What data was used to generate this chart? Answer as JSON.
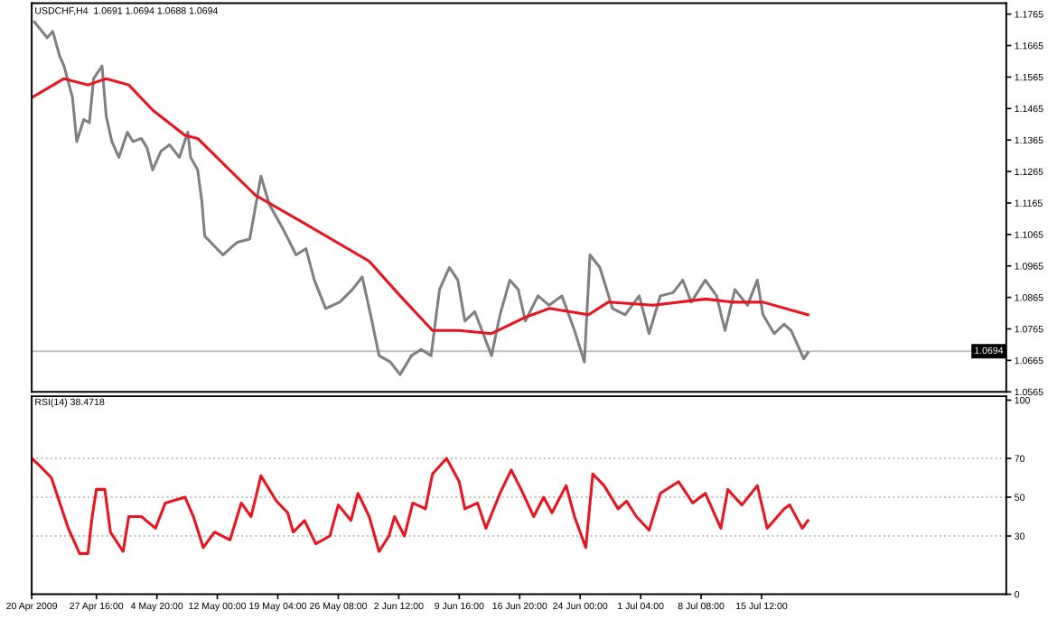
{
  "chart_data": [
    {
      "type": "line",
      "title": "USDCHF,H4  1.0691 1.0694 1.0688 1.0694",
      "xlim": [
        "2009-04-20T00:00",
        "2009-08-13T12:00"
      ],
      "ylim": [
        1.0565,
        1.18
      ],
      "yticks": [
        1.0565,
        1.0665,
        1.0765,
        1.0865,
        1.0965,
        1.1065,
        1.1165,
        1.1265,
        1.1365,
        1.1465,
        1.1565,
        1.1665,
        1.1765
      ],
      "tick_labels": "y",
      "grid": false,
      "ref_lines": [
        {
          "axis": "y",
          "value": 1.0694,
          "label": "1.0694",
          "color": "#c0c0c0",
          "line_style": "solid"
        }
      ],
      "series": [
        {
          "color": "#808080",
          "x": [
            "2009-04-20T08:00",
            "2009-04-21T20:00",
            "2009-04-22T12:00",
            "2009-04-23T08:00",
            "2009-04-23T20:00",
            "2009-04-24T20:00",
            "2009-04-25T08:00",
            "2009-04-26T04:00",
            "2009-04-26T20:00",
            "2009-04-27T08:00",
            "2009-04-28T08:00",
            "2009-04-28T20:00",
            "2009-04-29T12:00",
            "2009-04-30T08:00",
            "2009-05-01T08:00",
            "2009-05-02T00:00",
            "2009-05-03T00:00",
            "2009-05-03T16:00",
            "2009-05-04T08:00",
            "2009-05-05T08:00",
            "2009-05-06T08:00",
            "2009-05-07T12:00",
            "2009-05-08T12:00",
            "2009-05-08T20:00",
            "2009-05-09T16:00",
            "2009-05-10T04:00",
            "2009-05-10T12:00",
            "2009-05-12T16:00",
            "2009-05-14T08:00",
            "2009-05-15T20:00",
            "2009-05-17T04:00",
            "2009-05-18T04:00",
            "2009-05-19T20:00",
            "2009-05-21T08:00",
            "2009-05-22T12:00",
            "2009-05-23T12:00",
            "2009-05-24T20:00",
            "2009-05-26T12:00",
            "2009-05-28T00:00",
            "2009-05-29T04:00",
            "2009-05-30T04:00",
            "2009-05-31T04:00",
            "2009-06-01T12:00",
            "2009-06-02T16:00",
            "2009-06-04T00:00",
            "2009-06-05T04:00",
            "2009-06-06T08:00",
            "2009-06-07T08:00",
            "2009-06-08T12:00",
            "2009-06-09T12:00",
            "2009-06-10T08:00",
            "2009-06-11T12:00",
            "2009-06-12T12:00",
            "2009-06-13T12:00",
            "2009-06-14T12:00",
            "2009-06-15T16:00",
            "2009-06-16T16:00",
            "2009-06-17T12:00",
            "2009-06-19T00:00",
            "2009-06-20T08:00",
            "2009-06-21T20:00",
            "2009-06-23T08:00",
            "2009-06-24T12:00",
            "2009-06-25T04:00",
            "2009-06-26T08:00",
            "2009-06-27T20:00",
            "2009-06-29T08:00",
            "2009-07-01T00:00",
            "2009-07-02T04:00",
            "2009-07-03T12:00",
            "2009-07-05T00:00",
            "2009-07-06T04:00",
            "2009-07-07T04:00",
            "2009-07-08T20:00",
            "2009-07-10T04:00",
            "2009-07-11T04:00",
            "2009-07-12T08:00",
            "2009-07-13T20:00",
            "2009-07-15T00:00",
            "2009-07-15T16:00",
            "2009-07-17T00:00",
            "2009-07-18T04:00",
            "2009-07-19T00:00",
            "2009-07-19T20:00",
            "2009-07-20T12:00",
            "2009-07-21T00:00"
          ],
          "values": [
            1.174,
            1.169,
            1.171,
            1.163,
            1.16,
            1.15,
            1.136,
            1.143,
            1.142,
            1.156,
            1.16,
            1.144,
            1.136,
            1.131,
            1.139,
            1.136,
            1.137,
            1.134,
            1.127,
            1.133,
            1.135,
            1.131,
            1.139,
            1.131,
            1.127,
            1.117,
            1.106,
            1.1,
            1.104,
            1.105,
            1.125,
            1.116,
            1.108,
            1.1,
            1.102,
            1.092,
            1.083,
            1.085,
            1.089,
            1.093,
            1.081,
            1.068,
            1.066,
            1.062,
            1.068,
            1.07,
            1.068,
            1.089,
            1.096,
            1.092,
            1.079,
            1.082,
            1.075,
            1.068,
            1.081,
            1.092,
            1.089,
            1.079,
            1.087,
            1.084,
            1.087,
            1.076,
            1.066,
            1.1,
            1.096,
            1.083,
            1.081,
            1.087,
            1.075,
            1.087,
            1.088,
            1.092,
            1.085,
            1.092,
            1.087,
            1.076,
            1.089,
            1.084,
            1.092,
            1.081,
            1.075,
            1.078,
            1.076,
            1.071,
            1.067,
            1.069
          ]
        },
        {
          "color": "#e8141e",
          "x": [
            "2009-04-20T00:00",
            "2009-04-23T20:00",
            "2009-04-26T16:00",
            "2009-04-28T20:00",
            "2009-05-01T12:00",
            "2009-05-04T08:00",
            "2009-05-08T04:00",
            "2009-05-09T16:00",
            "2009-05-16T12:00",
            "2009-05-22T08:00",
            "2009-05-30T00:00",
            "2009-06-02T16:00",
            "2009-06-06T12:00",
            "2009-06-09T16:00",
            "2009-06-13T12:00",
            "2009-06-17T08:00",
            "2009-06-20T08:00",
            "2009-06-25T00:00",
            "2009-06-27T08:00",
            "2009-07-02T16:00",
            "2009-07-08T20:00",
            "2009-07-12T00:00",
            "2009-07-15T16:00",
            "2009-07-21T00:00"
          ],
          "values": [
            1.15,
            1.156,
            1.154,
            1.156,
            1.154,
            1.146,
            1.138,
            1.137,
            1.119,
            1.11,
            1.098,
            1.087,
            1.076,
            1.076,
            1.075,
            1.08,
            1.083,
            1.081,
            1.085,
            1.084,
            1.086,
            1.085,
            1.085,
            1.081
          ]
        }
      ]
    },
    {
      "type": "line",
      "title": "RSI(14) 38.4718",
      "xlim": [
        "2009-04-20T00:00",
        "2009-08-13T12:00"
      ],
      "ylim": [
        0,
        102
      ],
      "yticks": [
        0,
        30,
        50,
        70,
        100
      ],
      "grid": false,
      "xticks": [
        {
          "value": "2009-04-20T00:00",
          "label": "20 Apr 2009"
        },
        {
          "value": "2009-04-27T16:00",
          "label": "27 Apr 16:00"
        },
        {
          "value": "2009-05-04T20:00",
          "label": "4 May 20:00"
        },
        {
          "value": "2009-05-12T00:00",
          "label": "12 May 00:00"
        },
        {
          "value": "2009-05-19T04:00",
          "label": "19 May 04:00"
        },
        {
          "value": "2009-05-26T08:00",
          "label": "26 May 08:00"
        },
        {
          "value": "2009-06-02T12:00",
          "label": "2 Jun 12:00"
        },
        {
          "value": "2009-06-09T16:00",
          "label": "9 Jun 16:00"
        },
        {
          "value": "2009-06-16T20:00",
          "label": "16 Jun 20:00"
        },
        {
          "value": "2009-06-24T00:00",
          "label": "24 Jun 00:00"
        },
        {
          "value": "2009-07-01T04:00",
          "label": "1 Jul 04:00"
        },
        {
          "value": "2009-07-08T08:00",
          "label": "8 Jul 08:00"
        },
        {
          "value": "2009-07-15T12:00",
          "label": "15 Jul 12:00"
        }
      ],
      "ref_lines": [
        {
          "axis": "y",
          "value": 30,
          "color": "#c0c0c0",
          "line_style": "dotted"
        },
        {
          "axis": "y",
          "value": 50,
          "color": "#c0c0c0",
          "line_style": "dotted"
        },
        {
          "axis": "y",
          "value": 70,
          "color": "#c0c0c0",
          "line_style": "dotted"
        }
      ],
      "series": [
        {
          "color": "#e8141e",
          "x": [
            "2009-04-20T00:00",
            "2009-04-21T00:00",
            "2009-04-22T08:00",
            "2009-04-23T08:00",
            "2009-04-24T08:00",
            "2009-04-25T16:00",
            "2009-04-26T16:00",
            "2009-04-27T04:00",
            "2009-04-27T16:00",
            "2009-04-28T16:00",
            "2009-04-29T08:00",
            "2009-04-30T20:00",
            "2009-05-01T12:00",
            "2009-05-03T00:00",
            "2009-05-04T16:00",
            "2009-05-05T20:00",
            "2009-05-08T04:00",
            "2009-05-09T04:00",
            "2009-05-10T08:00",
            "2009-05-11T16:00",
            "2009-05-13T12:00",
            "2009-05-14T20:00",
            "2009-05-16T00:00",
            "2009-05-17T04:00",
            "2009-05-19T00:00",
            "2009-05-20T08:00",
            "2009-05-21T00:00",
            "2009-05-22T08:00",
            "2009-05-23T16:00",
            "2009-05-25T08:00",
            "2009-05-26T08:00",
            "2009-05-27T20:00",
            "2009-05-28T16:00",
            "2009-05-30T00:00",
            "2009-05-31T04:00",
            "2009-06-01T08:00",
            "2009-06-02T00:00",
            "2009-06-03T04:00",
            "2009-06-04T04:00",
            "2009-06-05T16:00",
            "2009-06-06T12:00",
            "2009-06-08T04:00",
            "2009-06-09T16:00",
            "2009-06-10T08:00",
            "2009-06-11T20:00",
            "2009-06-12T20:00",
            "2009-06-14T12:00",
            "2009-06-15T20:00",
            "2009-06-17T00:00",
            "2009-06-18T12:00",
            "2009-06-19T16:00",
            "2009-06-20T16:00",
            "2009-06-22T08:00",
            "2009-06-23T08:00",
            "2009-06-24T16:00",
            "2009-06-25T12:00",
            "2009-06-26T20:00",
            "2009-06-28T12:00",
            "2009-06-29T12:00",
            "2009-06-30T16:00",
            "2009-07-02T04:00",
            "2009-07-03T12:00",
            "2009-07-05T16:00",
            "2009-07-07T08:00",
            "2009-07-08T20:00",
            "2009-07-10T16:00",
            "2009-07-11T12:00",
            "2009-07-13T04:00",
            "2009-07-15T00:00",
            "2009-07-16T04:00",
            "2009-07-18T04:00",
            "2009-07-18T20:00",
            "2009-07-20T08:00",
            "2009-07-21T00:00"
          ],
          "values": [
            70,
            66,
            60,
            47,
            34,
            21,
            21,
            40,
            54,
            54,
            32,
            22,
            40,
            40,
            34,
            47,
            50,
            40,
            24,
            32,
            28,
            47,
            40,
            61,
            48,
            42,
            32,
            38,
            26,
            30,
            46,
            38,
            52,
            40,
            22,
            30,
            40,
            30,
            47,
            44,
            62,
            70,
            58,
            44,
            47,
            34,
            52,
            64,
            54,
            40,
            50,
            42,
            56,
            40,
            24,
            62,
            56,
            44,
            48,
            40,
            33,
            52,
            58,
            47,
            52,
            34,
            54,
            46,
            56,
            34,
            44,
            46,
            34,
            38
          ]
        }
      ]
    }
  ]
}
